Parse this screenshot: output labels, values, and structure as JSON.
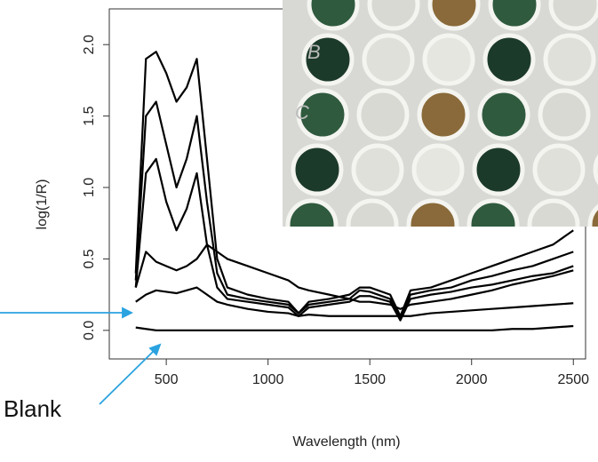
{
  "chart_data": {
    "type": "line",
    "x_label": "Wavelength (nm)",
    "y_label": "log(1/R)",
    "x": [
      350,
      400,
      450,
      500,
      550,
      600,
      650,
      700,
      750,
      800,
      900,
      1000,
      1100,
      1150,
      1200,
      1300,
      1400,
      1450,
      1500,
      1600,
      1650,
      1700,
      1800,
      1900,
      2000,
      2100,
      2200,
      2300,
      2400,
      2500
    ],
    "series": [
      {
        "color": "#000000",
        "values": [
          0.4,
          1.9,
          1.95,
          1.8,
          1.6,
          1.7,
          1.9,
          1.2,
          0.5,
          0.3,
          0.25,
          0.22,
          0.2,
          0.12,
          0.2,
          0.22,
          0.25,
          0.3,
          0.3,
          0.25,
          0.1,
          0.28,
          0.3,
          0.35,
          0.4,
          0.45,
          0.5,
          0.55,
          0.6,
          0.7
        ]
      },
      {
        "color": "#000000",
        "values": [
          0.35,
          1.5,
          1.6,
          1.3,
          1.0,
          1.2,
          1.5,
          0.9,
          0.4,
          0.25,
          0.22,
          0.2,
          0.18,
          0.12,
          0.18,
          0.2,
          0.22,
          0.28,
          0.27,
          0.22,
          0.08,
          0.25,
          0.28,
          0.3,
          0.35,
          0.38,
          0.42,
          0.45,
          0.5,
          0.55
        ]
      },
      {
        "color": "#000000",
        "values": [
          0.3,
          1.1,
          1.2,
          0.9,
          0.7,
          0.85,
          1.1,
          0.6,
          0.3,
          0.22,
          0.2,
          0.18,
          0.16,
          0.1,
          0.16,
          0.18,
          0.2,
          0.24,
          0.24,
          0.2,
          0.07,
          0.22,
          0.25,
          0.27,
          0.3,
          0.32,
          0.35,
          0.38,
          0.4,
          0.45
        ]
      },
      {
        "color": "#000000",
        "values": [
          0.3,
          0.55,
          0.48,
          0.45,
          0.42,
          0.45,
          0.5,
          0.6,
          0.55,
          0.5,
          0.45,
          0.4,
          0.35,
          0.3,
          0.28,
          0.25,
          0.22,
          0.2,
          0.2,
          0.18,
          0.15,
          0.18,
          0.2,
          0.22,
          0.25,
          0.28,
          0.32,
          0.35,
          0.38,
          0.42
        ]
      },
      {
        "color": "#000000",
        "values": [
          0.2,
          0.25,
          0.28,
          0.27,
          0.26,
          0.28,
          0.3,
          0.25,
          0.2,
          0.18,
          0.15,
          0.13,
          0.12,
          0.1,
          0.11,
          0.1,
          0.1,
          0.1,
          0.1,
          0.1,
          0.1,
          0.1,
          0.12,
          0.13,
          0.14,
          0.15,
          0.16,
          0.17,
          0.18,
          0.19
        ]
      },
      {
        "color": "#000000",
        "values": [
          0.02,
          0.01,
          0,
          0,
          0,
          0,
          0,
          0,
          0,
          0,
          0,
          0,
          0,
          0,
          0,
          0,
          0,
          0,
          0,
          0,
          0,
          0,
          0,
          0,
          0,
          0,
          0.01,
          0.01,
          0.02,
          0.03
        ]
      }
    ],
    "xlim": [
      220,
      2560
    ],
    "ylim": [
      -0.2,
      2.25
    ],
    "xticks": [
      500,
      1000,
      1500,
      2000,
      2500
    ],
    "yticks": [
      {
        "value": 0,
        "label": "0.0"
      },
      {
        "value": 0.5,
        "label": "0.5"
      },
      {
        "value": 1,
        "label": "1.0"
      },
      {
        "value": 1.5,
        "label": "1.5"
      },
      {
        "value": 2,
        "label": "2.0"
      }
    ],
    "annotations": [
      "Blank"
    ],
    "inset_labels": [
      "B",
      "C"
    ]
  }
}
